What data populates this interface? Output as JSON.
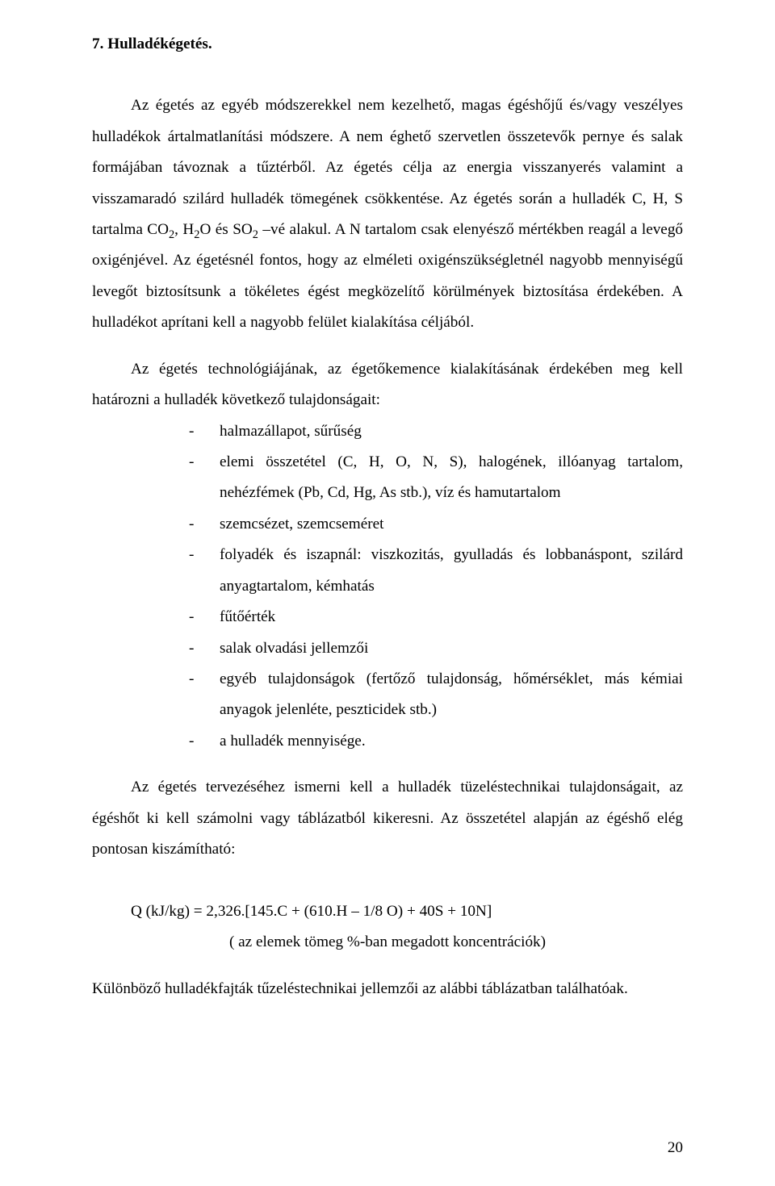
{
  "section": {
    "title": "7. Hulladékégetés."
  },
  "para1_a": "Az égetés az egyéb módszerekkel nem kezelhető, magas égéshőjű és/vagy veszélyes hulladékok ártalmatlanítási módszere. A nem éghető szervetlen összetevők pernye és salak formájában távoznak a tűztérből. Az égetés célja az energia visszanyerés valamint a visszamaradó szilárd hulladék tömegének csökkentése. Az égetés során a hulladék C, H, S tartalma CO",
  "para1_b": ", H",
  "para1_c": "O és SO",
  "para1_d": " –vé alakul. A N tartalom csak elenyésző mértékben reagál a levegő oxigénjével. Az égetésnél fontos, hogy az elméleti oxigénszükségletnél nagyobb mennyiségű levegőt biztosítsunk a tökéletes égést megközelítő körülmények biztosítása érdekében. A hulladékot aprítani kell a nagyobb felület kialakítása céljából.",
  "sub2a": "2",
  "sub2b": "2",
  "sub2c": "2",
  "para2": "Az égetés technológiájának, az égetőkemence kialakításának érdekében meg kell határozni a hulladék következő tulajdonságait:",
  "properties": [
    "halmazállapot, sűrűség",
    "elemi összetétel (C, H, O, N, S), halogének, illóanyag tartalom, nehézfémek (Pb, Cd, Hg, As stb.), víz és hamutartalom",
    "szemcsézet, szemcseméret",
    "folyadék és iszapnál: viszkozitás, gyulladás és lobbanáspont, szilárd anyagtartalom, kémhatás",
    "fűtőérték",
    "salak olvadási jellemzői",
    "egyéb tulajdonságok (fertőző tulajdonság, hőmérséklet, más kémiai anyagok jelenléte, peszticidek stb.)",
    "a hulladék mennyisége."
  ],
  "para3": "Az égetés tervezéséhez ismerni kell a hulladék tüzeléstechnikai tulajdonságait, az égéshőt ki kell számolni vagy táblázatból kikeresni. Az összetétel alapján az égéshő elég pontosan kiszámítható:",
  "formula": "Q (kJ/kg) = 2,326.[145.C + (610.H – 1/8 O) + 40S + 10N]",
  "formula_note": "( az elemek tömeg %-ban  megadott koncentrációk)",
  "closing": "Különböző hulladékfajták tűzeléstechnikai jellemzői az alábbi táblázatban találhatóak.",
  "page_number": "20"
}
